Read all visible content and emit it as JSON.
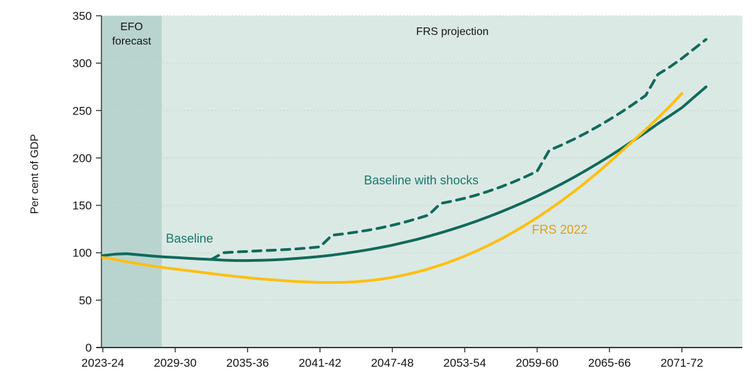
{
  "annotations": {
    "efo": {
      "line1": "EFO",
      "line2": "forecast"
    },
    "frs_projection": "FRS projection",
    "baseline_label": "Baseline",
    "shocks_label": "Baseline with shocks",
    "frs2022_label": "FRS 2022"
  },
  "axes": {
    "y_label": "Per cent of GDP",
    "y_ticks": [
      0,
      50,
      100,
      150,
      200,
      250,
      300,
      350
    ],
    "x_tick_labels": [
      "2023-24",
      "2029-30",
      "2035-36",
      "2041-42",
      "2047-48",
      "2053-54",
      "2059-60",
      "2065-66",
      "2071-72"
    ],
    "x_tick_indices": [
      0,
      6,
      12,
      18,
      24,
      30,
      36,
      42,
      48
    ]
  },
  "colors": {
    "teal_line": "#116a5b",
    "teal_text": "#187a69",
    "yellow_line": "#fdbf11",
    "gold_text": "#dfa014",
    "efo_band": "#b9d4cf",
    "plot_bg": "#dbe9e5",
    "grid": "#c7d6d1",
    "axis": "#3a3a3a",
    "tick_text": "#141414"
  },
  "chart_data": {
    "type": "line",
    "title": "",
    "xlabel": "",
    "ylabel": "Per cent of GDP",
    "ylim": [
      0,
      350
    ],
    "x_start_year": "2023-24",
    "x_end_year": "2073-74",
    "grid": "horizontal-dotted",
    "legend_position": "inline-annotations",
    "shaded_region": {
      "label": "EFO forecast",
      "from": "2023-24",
      "to": "2028-29"
    },
    "series": [
      {
        "name": "Baseline",
        "style": "solid",
        "color": "#116a5b",
        "values": [
          97,
          98.5,
          99,
          97.8,
          96.6,
          95.7,
          95,
          94.2,
          93.5,
          92.9,
          92.2,
          91.8,
          91.8,
          92,
          92.4,
          93,
          93.9,
          94.9,
          96.1,
          97.5,
          99.2,
          101.1,
          103.2,
          105.5,
          108,
          110.9,
          114,
          117.4,
          121,
          124.9,
          129,
          133.4,
          138.1,
          143.1,
          148.4,
          153.9,
          159.7,
          165.9,
          172.4,
          179.3,
          186.5,
          194,
          201.8,
          210,
          218.5,
          227,
          236,
          244.5,
          253,
          264,
          275
        ]
      },
      {
        "name": "Baseline with shocks",
        "style": "dashed",
        "color": "#116a5b",
        "values": [
          null,
          null,
          null,
          null,
          null,
          null,
          null,
          null,
          null,
          92.9,
          100,
          100.8,
          101.4,
          102,
          102.6,
          103.2,
          104,
          105,
          106.2,
          118.5,
          120,
          121.8,
          123.8,
          126.2,
          129,
          132.2,
          135.8,
          139.8,
          152,
          154.5,
          157.5,
          161,
          165,
          169.5,
          174.5,
          180,
          186,
          208,
          213.5,
          219.5,
          226,
          233,
          240.5,
          248.5,
          257,
          266,
          288,
          296,
          305,
          315,
          325
        ]
      },
      {
        "name": "FRS 2022",
        "style": "solid",
        "color": "#fdbf11",
        "values": [
          95,
          93,
          90.5,
          88.2,
          86.2,
          84.4,
          82.8,
          81.2,
          79.6,
          78,
          76.4,
          75,
          73.7,
          72.5,
          71.5,
          70.5,
          69.7,
          69.1,
          68.7,
          68.6,
          68.8,
          69.4,
          70.5,
          72,
          74,
          76.5,
          79.5,
          83,
          87,
          91.5,
          96.5,
          102,
          108,
          114.5,
          121.5,
          129,
          137,
          145.5,
          154.5,
          164,
          174,
          184.5,
          195.5,
          207,
          218.5,
          230,
          242,
          254.5,
          268
        ]
      }
    ]
  }
}
